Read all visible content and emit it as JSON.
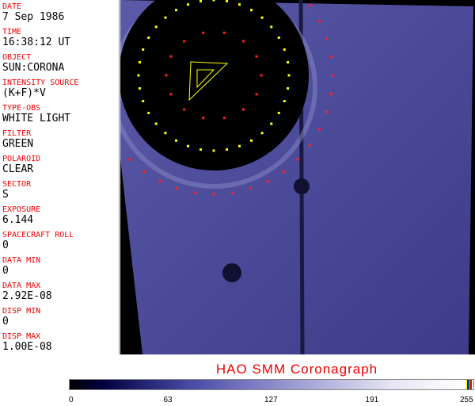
{
  "header_fields": [
    {
      "label": "DATE",
      "value": "7 Sep 1986"
    },
    {
      "label": "TIME",
      "value": "16:38:12 UT"
    },
    {
      "label": "OBJECT",
      "value": "SUN:CORONA"
    },
    {
      "label": "INTENSITY SOURCE",
      "value": "(K+F)*V"
    },
    {
      "label": "TYPE-OBS",
      "value": "WHITE LIGHT"
    },
    {
      "label": "FILTER",
      "value": "GREEN"
    },
    {
      "label": "POLAROID",
      "value": "CLEAR"
    },
    {
      "label": "SECTOR",
      "value": "S"
    },
    {
      "label": "EXPOSURE",
      "value": "6.144"
    },
    {
      "label": "SPACECRAFT ROLL",
      "value": "0"
    },
    {
      "label": "DATA MIN",
      "value": "0"
    },
    {
      "label": "DATA MAX",
      "value": "2.92E-08"
    },
    {
      "label": "DISP MIN",
      "value": "0"
    },
    {
      "label": "DISP MAX",
      "value": "1.00E-08"
    }
  ],
  "title": "HAO   SMM  Coronagraph",
  "colorbar": {
    "ticks": [
      "0",
      "63",
      "127",
      "191",
      "255"
    ],
    "colormap": "black-blue-white",
    "end_colors": [
      "#ffff00",
      "#0000ff",
      "#00c000",
      "#ff0000"
    ]
  },
  "colors": {
    "label": "#e00000",
    "image_blue": "#4a4a9a",
    "occulter_dots": "#ff2020",
    "sun_dots": "#ffff00"
  }
}
